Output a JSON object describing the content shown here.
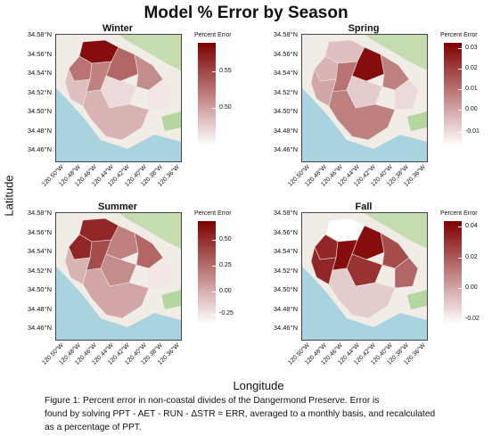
{
  "title": "Model % Error by Season",
  "x_title": "Longitude",
  "y_title": "Latitude",
  "caption": [
    "Figure 1: Percent error in non-coastal divides of the Dangermond Preserve. Error is",
    "found by solving PPT - AET - RUN - ΔSTR = ERR, averaged to a monthly basis, and recalculated",
    "as a percentage of PPT."
  ],
  "lat_ticks": [
    "34.58°N",
    "34.56°N",
    "34.54°N",
    "34.52°N",
    "34.50°N",
    "34.48°N",
    "34.46°N"
  ],
  "lon_ticks": [
    "120.50°W",
    "120.48°W",
    "120.46°W",
    "120.44°W",
    "120.42°W",
    "120.40°W",
    "120.38°W",
    "120.36°W"
  ],
  "colors": {
    "low": "#ffffff",
    "high": "#7f0000",
    "ocean": "#a9d3df",
    "land": "#f1ede6",
    "vegetation": "#a8d08d"
  },
  "panels": [
    {
      "title": "Winter",
      "legend_title": "Percent Error",
      "legend_ticks": [
        "0.55",
        "0.50"
      ]
    },
    {
      "title": "Spring",
      "legend_title": "Percent Error",
      "legend_ticks": [
        "0.03",
        "0.02",
        "0.01",
        "0.00",
        "-0.01"
      ]
    },
    {
      "title": "Summer",
      "legend_title": "Percent Error",
      "legend_ticks": [
        "0.50",
        "0.25",
        "0.00",
        "-0.25"
      ]
    },
    {
      "title": "Fall",
      "legend_title": "Percent Error",
      "legend_ticks": [
        "0.04",
        "0.02",
        "0.00",
        "-0.02"
      ]
    }
  ]
}
